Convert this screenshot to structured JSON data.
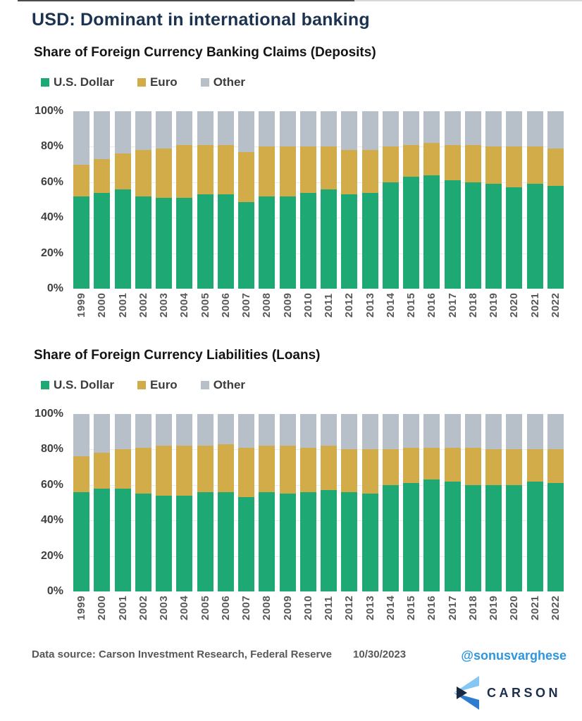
{
  "title": "USD: Dominant in international banking",
  "colors": {
    "title_navy": "#1B3350",
    "usd_green": "#1EA873",
    "euro_gold": "#D2AC48",
    "other_gray": "#B7C0C9",
    "handle_blue": "#2E96E0",
    "logo_navy": "#1E2D4D",
    "logo_light_blue": "#85C6F2",
    "logo_mid_blue": "#2E7CD0"
  },
  "chart_data": [
    {
      "type": "bar",
      "stacked": true,
      "title": "Share of Foreign Currency Banking Claims (Deposits)",
      "categories": [
        "1999",
        "2000",
        "2001",
        "2002",
        "2003",
        "2004",
        "2005",
        "2006",
        "2007",
        "2008",
        "2009",
        "2010",
        "2011",
        "2012",
        "2013",
        "2014",
        "2015",
        "2016",
        "2017",
        "2018",
        "2019",
        "2020",
        "2021",
        "2022"
      ],
      "series": [
        {
          "key": "usd",
          "name": "U.S. Dollar",
          "color": "#1EA873",
          "values": [
            52,
            54,
            56,
            52,
            51,
            51,
            53,
            53,
            49,
            52,
            52,
            54,
            56,
            53,
            54,
            60,
            63,
            64,
            61,
            60,
            59,
            57,
            59,
            58
          ]
        },
        {
          "key": "euro",
          "name": "Euro",
          "color": "#D2AC48",
          "values": [
            18,
            19,
            20,
            26,
            28,
            30,
            28,
            28,
            28,
            28,
            28,
            26,
            24,
            25,
            24,
            20,
            18,
            18,
            20,
            21,
            21,
            23,
            21,
            21
          ]
        },
        {
          "key": "other",
          "name": "Other",
          "color": "#B7C0C9",
          "values": [
            30,
            27,
            24,
            22,
            21,
            19,
            19,
            19,
            23,
            20,
            20,
            20,
            20,
            22,
            22,
            20,
            19,
            18,
            19,
            19,
            20,
            20,
            20,
            21
          ]
        }
      ],
      "y_ticks": [
        "100%",
        "80%",
        "60%",
        "40%",
        "20%",
        "0%"
      ],
      "ylim": [
        0,
        100
      ],
      "unit": "%",
      "grid": true,
      "legend_position": "top-left"
    },
    {
      "type": "bar",
      "stacked": true,
      "title": "Share of Foreign Currency Liabilities (Loans)",
      "categories": [
        "1999",
        "2000",
        "2001",
        "2002",
        "2003",
        "2004",
        "2005",
        "2006",
        "2007",
        "2008",
        "2009",
        "2010",
        "2011",
        "2012",
        "2013",
        "2014",
        "2015",
        "2016",
        "2017",
        "2018",
        "2019",
        "2020",
        "2021",
        "2022"
      ],
      "series": [
        {
          "key": "usd",
          "name": "U.S. Dollar",
          "color": "#1EA873",
          "values": [
            56,
            58,
            58,
            55,
            54,
            54,
            56,
            56,
            53,
            56,
            55,
            56,
            57,
            56,
            55,
            60,
            61,
            63,
            62,
            60,
            60,
            60,
            62,
            61
          ]
        },
        {
          "key": "euro",
          "name": "Euro",
          "color": "#D2AC48",
          "values": [
            20,
            20,
            22,
            26,
            28,
            28,
            26,
            27,
            28,
            26,
            27,
            25,
            25,
            24,
            25,
            20,
            20,
            18,
            19,
            21,
            20,
            20,
            18,
            19
          ]
        },
        {
          "key": "other",
          "name": "Other",
          "color": "#B7C0C9",
          "values": [
            24,
            22,
            20,
            19,
            18,
            18,
            18,
            17,
            19,
            18,
            18,
            19,
            18,
            20,
            20,
            20,
            19,
            19,
            19,
            19,
            20,
            20,
            20,
            20
          ]
        }
      ],
      "y_ticks": [
        "100%",
        "80%",
        "60%",
        "40%",
        "20%",
        "0%"
      ],
      "ylim": [
        0,
        100
      ],
      "unit": "%",
      "grid": true,
      "legend_position": "top-left"
    }
  ],
  "footer": {
    "source": "Data source: Carson Investment Research, Federal Reserve",
    "date": "10/30/2023",
    "handle": "@sonusvarghese",
    "logo_text": "CARSON"
  }
}
